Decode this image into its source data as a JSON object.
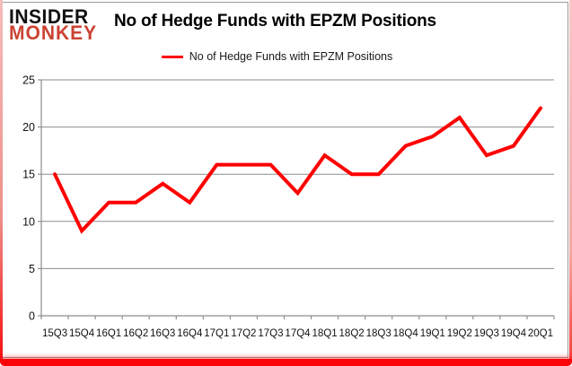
{
  "brand": {
    "line1": "INSIDER",
    "line2": "MONKEY"
  },
  "header": {
    "title": "No of Hedge Funds with EPZM Positions"
  },
  "legend": {
    "label": "No of Hedge Funds with EPZM Positions"
  },
  "colors": {
    "series": "#ff0000",
    "grid": "#8e8e8e",
    "axis": "#8e8e8e",
    "brand_black": "#111111",
    "brand_red": "#cb4232",
    "text": "#000000"
  },
  "chart_data": {
    "type": "line",
    "title": "No of Hedge Funds with EPZM Positions",
    "series_name": "No of Hedge Funds with EPZM Positions",
    "categories": [
      "15Q3",
      "15Q4",
      "16Q1",
      "16Q2",
      "16Q3",
      "16Q4",
      "17Q1",
      "17Q2",
      "17Q3",
      "17Q4",
      "18Q1",
      "18Q2",
      "18Q3",
      "18Q4",
      "19Q1",
      "19Q2",
      "19Q3",
      "19Q4",
      "20Q1"
    ],
    "values": [
      15,
      9,
      12,
      12,
      14,
      12,
      16,
      16,
      16,
      13,
      17,
      15,
      15,
      18,
      19,
      21,
      17,
      18,
      22
    ],
    "xlabel": "",
    "ylabel": "",
    "ylim": [
      0,
      25
    ],
    "yticks": [
      0,
      5,
      10,
      15,
      20,
      25
    ],
    "grid": true,
    "legend_position": "top-center"
  }
}
